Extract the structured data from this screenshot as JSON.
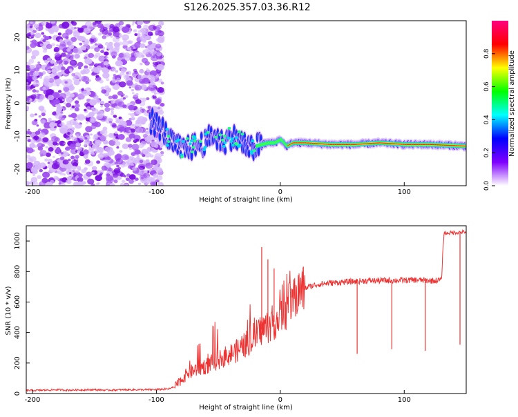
{
  "page": {
    "title": "S126.2025.357.03.36.R12"
  },
  "chart_data": [
    {
      "type": "heatmap",
      "name": "spectrogram",
      "title": "S126.2025.357.03.36.R12",
      "xlabel": "Height of straight line (km)",
      "ylabel": "Frequency (Hz)",
      "xlim": [
        -205,
        150
      ],
      "ylim": [
        -25,
        25
      ],
      "xticks": [
        -200,
        -100,
        0,
        100
      ],
      "yticks": [
        20,
        10,
        0,
        -10,
        -20
      ],
      "noise_region_x": [
        -205,
        -95
      ],
      "signal_track": {
        "x": [
          -105,
          -95,
          -88,
          -80,
          -70,
          -60,
          -55,
          -50,
          -45,
          -40,
          -35,
          -30,
          -25,
          -20,
          -10,
          -5,
          0,
          5,
          10,
          20,
          40,
          60,
          80,
          100,
          120,
          150
        ],
        "freq": [
          -5,
          -8,
          -12,
          -14,
          -13,
          -12,
          -9,
          -11,
          -12,
          -10,
          -11,
          -12,
          -14,
          -13,
          -12,
          -12,
          -11,
          -13,
          -12,
          -12,
          -12.5,
          -12.5,
          -12,
          -12.5,
          -12.5,
          -13
        ]
      },
      "colorbar": {
        "label": "Normalized spectral amplitude",
        "range": [
          0.0,
          1.0
        ],
        "ticks": [
          "0.0",
          "0.2",
          "0.4",
          "0.6",
          "0.8"
        ],
        "colors": [
          "#ffffff",
          "#7f00ff",
          "#0000ff",
          "#00ffff",
          "#00ff00",
          "#ffff00",
          "#ff0000",
          "#ff0080"
        ]
      }
    },
    {
      "type": "line",
      "name": "snr",
      "xlabel": "Height of straight line (km)",
      "ylabel": "SNR (10 * v/v)",
      "xlim": [
        -205,
        150
      ],
      "ylim": [
        0,
        1100
      ],
      "xticks": [
        -200,
        -100,
        0,
        100
      ],
      "yticks": [
        0,
        200,
        400,
        600,
        800,
        1000
      ],
      "color": "#ee3333",
      "series": [
        {
          "name": "SNR",
          "x": [
            -205,
            -190,
            -180,
            -170,
            -160,
            -150,
            -140,
            -130,
            -120,
            -110,
            -100,
            -90,
            -85,
            -80,
            -75,
            -70,
            -65,
            -60,
            -55,
            -50,
            -45,
            -40,
            -35,
            -30,
            -25,
            -20,
            -15,
            -10,
            -5,
            0,
            5,
            10,
            15,
            20,
            25,
            30,
            40,
            50,
            60,
            70,
            80,
            90,
            100,
            110,
            120,
            125,
            130,
            132,
            140,
            150
          ],
          "values": [
            20,
            22,
            25,
            22,
            24,
            25,
            22,
            24,
            25,
            25,
            26,
            30,
            45,
            90,
            130,
            150,
            170,
            180,
            200,
            220,
            240,
            260,
            280,
            310,
            340,
            380,
            420,
            440,
            470,
            500,
            560,
            620,
            660,
            690,
            705,
            715,
            725,
            730,
            735,
            740,
            740,
            742,
            742,
            745,
            740,
            740,
            745,
            1050,
            1055,
            1060
          ]
        }
      ],
      "spikes": [
        {
          "x": -15,
          "value": 960
        },
        {
          "x": -10,
          "value": 880
        },
        {
          "x": -5,
          "value": 820
        },
        {
          "x": 62,
          "value": 260
        },
        {
          "x": 90,
          "value": 290
        },
        {
          "x": 117,
          "value": 280
        },
        {
          "x": 145,
          "value": 320
        }
      ]
    }
  ]
}
